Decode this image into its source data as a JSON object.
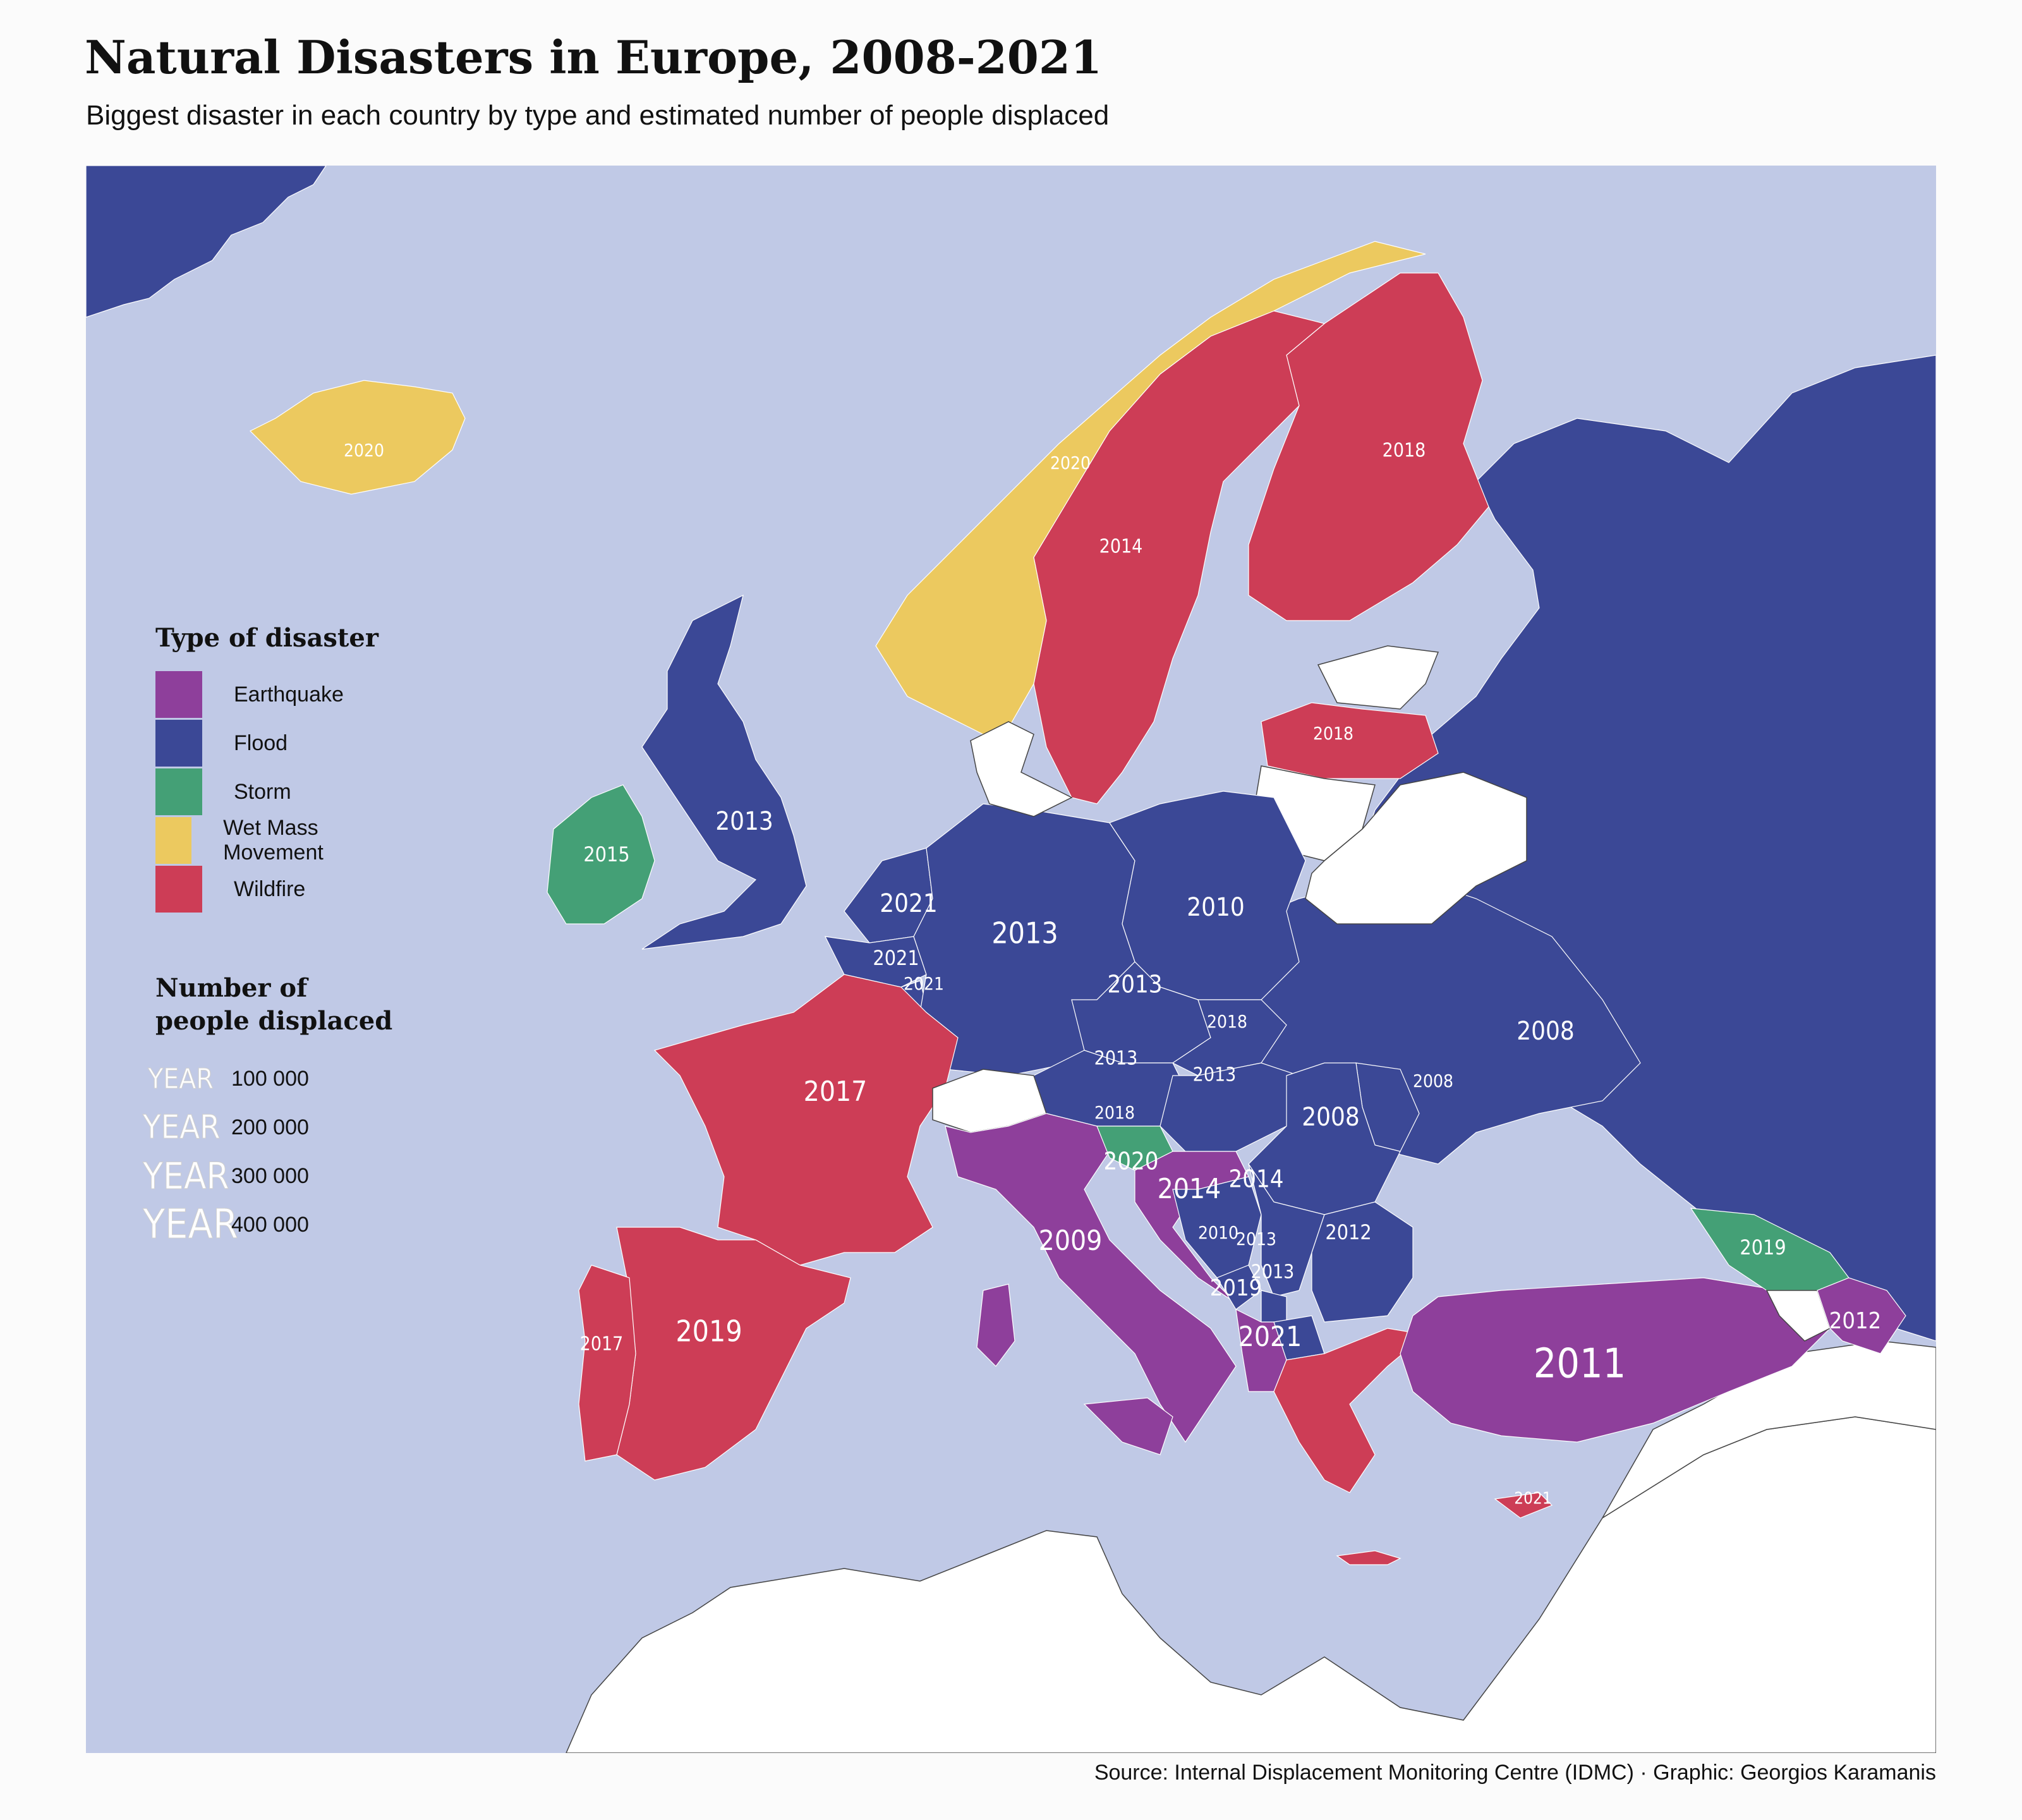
{
  "title": "Natural Disasters in Europe, 2008-2021",
  "subtitle": "Biggest disaster in each country by type and estimated number of people displaced",
  "source": "Source: Internal Displacement Monitoring Centre (IDMC) · Graphic: Georgios Karamanis",
  "colors": {
    "sea": "#c0c9e6",
    "no_data": "#ffffff",
    "Earthquake": "#8e3f9b",
    "Flood": "#3b4896",
    "Storm": "#44a076",
    "Wet Mass Movement": "#ecc95f",
    "Wildfire": "#cd3d56"
  },
  "legend_type": {
    "title": "Type of disaster",
    "items": [
      {
        "type": "Earthquake",
        "label": "Earthquake"
      },
      {
        "type": "Flood",
        "label": "Flood"
      },
      {
        "type": "Storm",
        "label": "Storm"
      },
      {
        "type": "Wet Mass Movement",
        "label": "Wet Mass Movement"
      },
      {
        "type": "Wildfire",
        "label": "Wildfire"
      }
    ]
  },
  "legend_size": {
    "title_line1": "Number of",
    "title_line2": "people displaced",
    "sample_text": "YEAR",
    "items": [
      {
        "value": 100000,
        "label": "100 000"
      },
      {
        "value": 200000,
        "label": "200 000"
      },
      {
        "value": 300000,
        "label": "300 000"
      },
      {
        "value": 400000,
        "label": "400 000"
      }
    ]
  },
  "regions": [
    {
      "id": "iceland",
      "type": "Wet Mass Movement",
      "year": "2020"
    },
    {
      "id": "norway",
      "type": "Wet Mass Movement",
      "year": "2020"
    },
    {
      "id": "sweden",
      "type": "Wildfire",
      "year": "2014"
    },
    {
      "id": "finland",
      "type": "Wildfire",
      "year": "2018"
    },
    {
      "id": "estonia",
      "type": "none",
      "year": ""
    },
    {
      "id": "latvia",
      "type": "Wildfire",
      "year": "2018"
    },
    {
      "id": "lithuania",
      "type": "none",
      "year": ""
    },
    {
      "id": "belarus",
      "type": "none",
      "year": ""
    },
    {
      "id": "russia",
      "type": "Flood",
      "year": ""
    },
    {
      "id": "uk",
      "type": "Flood",
      "year": "2013"
    },
    {
      "id": "ireland",
      "type": "Storm",
      "year": "2015"
    },
    {
      "id": "netherlands",
      "type": "Flood",
      "year": "2021"
    },
    {
      "id": "belgium",
      "type": "Flood",
      "year": "2021"
    },
    {
      "id": "luxembourg",
      "type": "Flood",
      "year": "2021"
    },
    {
      "id": "germany",
      "type": "Flood",
      "year": "2013"
    },
    {
      "id": "poland",
      "type": "Flood",
      "year": "2010"
    },
    {
      "id": "czechia",
      "type": "Flood",
      "year": "2013"
    },
    {
      "id": "slovakia",
      "type": "Flood",
      "year": "2018"
    },
    {
      "id": "austria",
      "type": "Flood",
      "year": "2013"
    },
    {
      "id": "hungary",
      "type": "Flood",
      "year": "2013"
    },
    {
      "id": "ukraine",
      "type": "Flood",
      "year": "2008"
    },
    {
      "id": "moldova",
      "type": "Flood",
      "year": "2008"
    },
    {
      "id": "romania",
      "type": "Flood",
      "year": "2008"
    },
    {
      "id": "france",
      "type": "Wildfire",
      "year": "2017"
    },
    {
      "id": "switzerland",
      "type": "none",
      "year": ""
    },
    {
      "id": "denmark",
      "type": "none",
      "year": ""
    },
    {
      "id": "slovenia",
      "type": "Storm",
      "year": "2018"
    },
    {
      "id": "croatia",
      "type": "Earthquake",
      "year": "2020"
    },
    {
      "id": "bosnia",
      "type": "Flood",
      "year": "2014"
    },
    {
      "id": "serbia",
      "type": "Flood",
      "year": "2014"
    },
    {
      "id": "montenegro",
      "type": "Flood",
      "year": "2010"
    },
    {
      "id": "kosovo",
      "type": "Flood",
      "year": "2013"
    },
    {
      "id": "north-macedonia",
      "type": "Flood",
      "year": "2013"
    },
    {
      "id": "albania",
      "type": "Earthquake",
      "year": "2019"
    },
    {
      "id": "bulgaria",
      "type": "Flood",
      "year": "2012"
    },
    {
      "id": "greece",
      "type": "Wildfire",
      "year": "2021"
    },
    {
      "id": "italy",
      "type": "Earthquake",
      "year": "2009"
    },
    {
      "id": "spain",
      "type": "Wildfire",
      "year": "2019"
    },
    {
      "id": "portugal",
      "type": "Wildfire",
      "year": "2017"
    },
    {
      "id": "turkey",
      "type": "Earthquake",
      "year": "2011"
    },
    {
      "id": "georgia",
      "type": "Storm",
      "year": "2019"
    },
    {
      "id": "armenia",
      "type": "none",
      "year": ""
    },
    {
      "id": "azerbaijan",
      "type": "Earthquake",
      "year": "2012"
    },
    {
      "id": "cyprus",
      "type": "Wildfire",
      "year": "2021"
    },
    {
      "id": "greenland",
      "type": "Flood",
      "year": ""
    }
  ]
}
